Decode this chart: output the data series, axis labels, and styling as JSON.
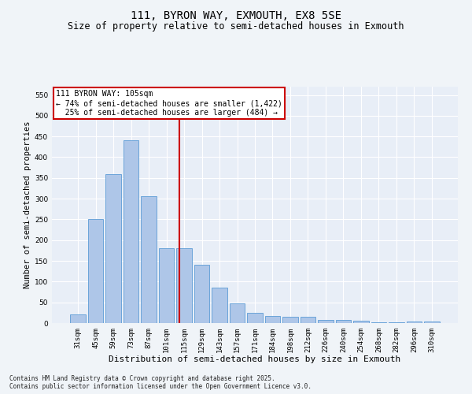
{
  "title": "111, BYRON WAY, EXMOUTH, EX8 5SE",
  "subtitle": "Size of property relative to semi-detached houses in Exmouth",
  "xlabel": "Distribution of semi-detached houses by size in Exmouth",
  "ylabel": "Number of semi-detached properties",
  "categories": [
    "31sqm",
    "45sqm",
    "59sqm",
    "73sqm",
    "87sqm",
    "101sqm",
    "115sqm",
    "129sqm",
    "143sqm",
    "157sqm",
    "171sqm",
    "184sqm",
    "198sqm",
    "212sqm",
    "226sqm",
    "240sqm",
    "254sqm",
    "268sqm",
    "282sqm",
    "296sqm",
    "310sqm"
  ],
  "values": [
    20,
    250,
    360,
    440,
    305,
    180,
    180,
    140,
    85,
    48,
    25,
    18,
    15,
    15,
    8,
    7,
    5,
    2,
    1,
    3,
    4
  ],
  "bar_color": "#aec6e8",
  "bar_edge_color": "#5b9bd5",
  "vline_x": 5.75,
  "vline_color": "#cc0000",
  "annotation_line1": "111 BYRON WAY: 105sqm",
  "annotation_line2": "← 74% of semi-detached houses are smaller (1,422)",
  "annotation_line3": "  25% of semi-detached houses are larger (484) →",
  "box_color": "#ffffff",
  "box_edge_color": "#cc0000",
  "ylim": [
    0,
    570
  ],
  "yticks": [
    0,
    50,
    100,
    150,
    200,
    250,
    300,
    350,
    400,
    450,
    500,
    550
  ],
  "bg_color": "#e8eef7",
  "fig_bg_color": "#f0f4f8",
  "footer_text": "Contains HM Land Registry data © Crown copyright and database right 2025.\nContains public sector information licensed under the Open Government Licence v3.0.",
  "title_fontsize": 10,
  "subtitle_fontsize": 8.5,
  "xlabel_fontsize": 8,
  "ylabel_fontsize": 7.5,
  "tick_fontsize": 6.5,
  "annotation_fontsize": 7,
  "footer_fontsize": 5.5
}
